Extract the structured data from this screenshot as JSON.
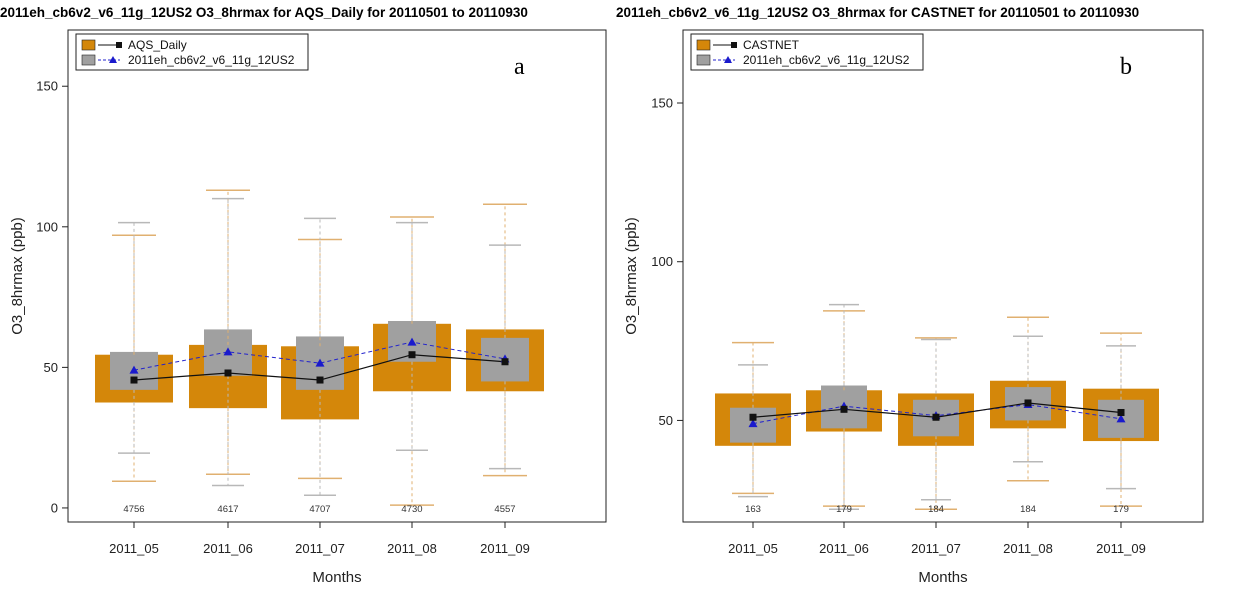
{
  "chart_data": [
    {
      "type": "boxplot",
      "title": "2011eh_cb6v2_v6_11g_12US2 O3_8hrmax for AQS_Daily for 20110501 to 20110930",
      "panel_label": "a",
      "xlabel": "Months",
      "ylabel": "O3_8hrmax (ppb)",
      "ylim": [
        -5,
        170
      ],
      "yticks": [
        0,
        50,
        100,
        150
      ],
      "categories": [
        "2011_05",
        "2011_06",
        "2011_07",
        "2011_08",
        "2011_09"
      ],
      "counts": [
        "4756",
        "4617",
        "4707",
        "4730",
        "4557"
      ],
      "legend": {
        "position": "top-left",
        "entries": [
          {
            "label": "AQS_Daily"
          },
          {
            "label": "2011eh_cb6v2_v6_11g_12US2"
          }
        ]
      },
      "series": [
        {
          "name": "AQS_Daily",
          "color": "#d4870a",
          "q1": [
            37.5,
            35.5,
            31.5,
            41.5,
            41.5
          ],
          "q3": [
            54.5,
            58.0,
            57.5,
            65.5,
            63.5
          ],
          "whisker_low": [
            9.5,
            12.0,
            10.5,
            1.0,
            11.5
          ],
          "whisker_high": [
            97.0,
            113.0,
            95.5,
            103.5,
            108.0
          ],
          "median": [
            45.5,
            48.0,
            45.5,
            54.5,
            52.0
          ]
        },
        {
          "name": "2011eh_cb6v2_v6_11g_12US2",
          "color": "#a0a0a0",
          "q1": [
            42.0,
            47.0,
            42.0,
            52.0,
            45.0
          ],
          "q3": [
            55.5,
            63.5,
            61.0,
            66.5,
            60.5
          ],
          "whisker_low": [
            19.5,
            8.0,
            4.5,
            20.5,
            14.0
          ],
          "whisker_high": [
            101.5,
            110.0,
            103.0,
            101.5,
            93.5
          ],
          "median": [
            49.0,
            55.5,
            51.5,
            59.0,
            53.0
          ]
        }
      ]
    },
    {
      "type": "boxplot",
      "title": "2011eh_cb6v2_v6_11g_12US2 O3_8hrmax for CASTNET for 20110501 to 20110930",
      "panel_label": "b",
      "xlabel": "Months",
      "ylabel": "O3_8hrmax (ppb)",
      "ylim": [
        18,
        173
      ],
      "yticks": [
        50,
        100,
        150
      ],
      "categories": [
        "2011_05",
        "2011_06",
        "2011_07",
        "2011_08",
        "2011_09"
      ],
      "counts": [
        "163",
        "179",
        "184",
        "184",
        "179"
      ],
      "legend": {
        "position": "top-left",
        "entries": [
          {
            "label": "CASTNET"
          },
          {
            "label": "2011eh_cb6v2_v6_11g_12US2"
          }
        ]
      },
      "series": [
        {
          "name": "CASTNET",
          "color": "#d4870a",
          "q1": [
            42.0,
            46.5,
            42.0,
            47.5,
            43.5
          ],
          "q3": [
            58.5,
            59.5,
            58.5,
            62.5,
            60.0
          ],
          "whisker_low": [
            27.0,
            23.0,
            22.0,
            31.0,
            23.0
          ],
          "whisker_high": [
            74.5,
            84.5,
            76.0,
            82.5,
            77.5
          ],
          "median": [
            51.0,
            53.5,
            51.0,
            55.5,
            52.5
          ]
        },
        {
          "name": "2011eh_cb6v2_v6_11g_12US2",
          "color": "#a0a0a0",
          "q1": [
            43.0,
            47.5,
            45.0,
            50.0,
            44.5
          ],
          "q3": [
            54.0,
            61.0,
            56.5,
            60.5,
            56.5
          ],
          "whisker_low": [
            26.0,
            22.0,
            25.0,
            37.0,
            28.5
          ],
          "whisker_high": [
            67.5,
            86.5,
            75.5,
            76.5,
            73.5
          ],
          "median": [
            49.0,
            54.5,
            51.5,
            55.0,
            50.5
          ]
        }
      ]
    }
  ]
}
